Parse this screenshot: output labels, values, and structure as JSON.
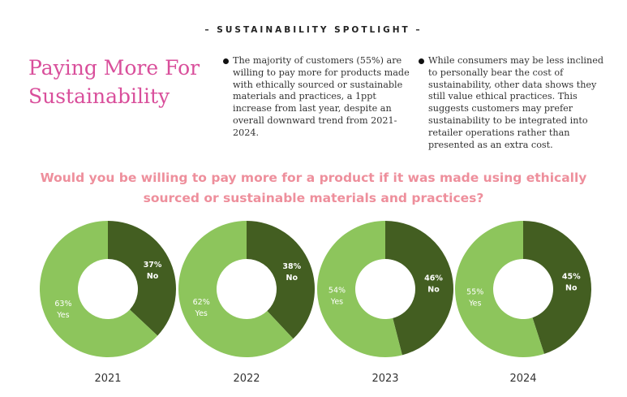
{
  "header": {
    "spotlight": "– SUSTAINABILITY SPOTLIGHT –",
    "title": "Paying More For Sustainability"
  },
  "bullets": [
    "The majority of customers (55%) are willing to pay more for products made with ethically sourced or sustainable materials and practices, a 1ppt increase from last year, despite an overall downward trend from 2021-2024.",
    "While consumers may be less inclined to personally bear the cost of sustainability, other data shows they still value ethical practices. This suggests customers may prefer sustainability to be integrated into retailer operations rather than presented as an extra cost."
  ],
  "chart_title": "Would you be willing to pay more for a product if it was made using ethically sourced or sustainable materials and practices?",
  "colors": {
    "yes": "#8dc55c",
    "no": "#435e21",
    "title": "#d94f9b",
    "question": "#ee8f9c"
  },
  "chart_data": {
    "type": "pie",
    "variant": "donut",
    "title": "Would you be willing to pay more for a product if it was made using ethically sourced or sustainable materials and practices?",
    "categories": [
      "2021",
      "2022",
      "2023",
      "2024"
    ],
    "series": [
      {
        "name": "Yes",
        "values": [
          63,
          62,
          54,
          55
        ]
      },
      {
        "name": "No",
        "values": [
          37,
          38,
          46,
          45
        ]
      }
    ],
    "label_texts": {
      "yes": [
        "63%",
        "62%",
        "54%",
        "55%"
      ],
      "no": [
        "37%",
        "38%",
        "46%",
        "45%"
      ]
    },
    "legend": "none"
  }
}
